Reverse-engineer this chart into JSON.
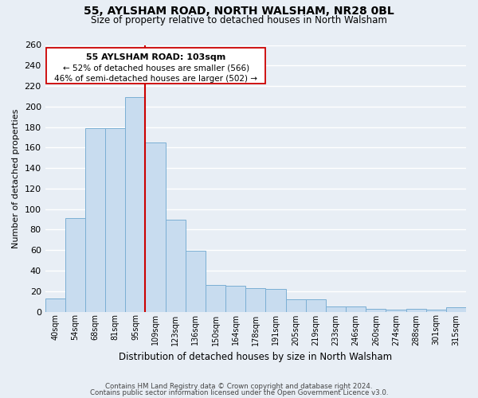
{
  "title": "55, AYLSHAM ROAD, NORTH WALSHAM, NR28 0BL",
  "subtitle": "Size of property relative to detached houses in North Walsham",
  "xlabel": "Distribution of detached houses by size in North Walsham",
  "ylabel": "Number of detached properties",
  "bar_color": "#c8dcef",
  "bar_edge_color": "#7bafd4",
  "categories": [
    "40sqm",
    "54sqm",
    "68sqm",
    "81sqm",
    "95sqm",
    "109sqm",
    "123sqm",
    "136sqm",
    "150sqm",
    "164sqm",
    "178sqm",
    "191sqm",
    "205sqm",
    "219sqm",
    "233sqm",
    "246sqm",
    "260sqm",
    "274sqm",
    "288sqm",
    "301sqm",
    "315sqm"
  ],
  "values": [
    13,
    91,
    179,
    179,
    209,
    165,
    90,
    59,
    26,
    25,
    23,
    22,
    12,
    12,
    5,
    5,
    3,
    2,
    3,
    2,
    4
  ],
  "ylim": [
    0,
    260
  ],
  "yticks": [
    0,
    20,
    40,
    60,
    80,
    100,
    120,
    140,
    160,
    180,
    200,
    220,
    240,
    260
  ],
  "property_line_label": "55 AYLSHAM ROAD: 103sqm",
  "annotation_line1": "← 52% of detached houses are smaller (566)",
  "annotation_line2": "46% of semi-detached houses are larger (502) →",
  "annotation_box_color": "#ffffff",
  "annotation_box_edge_color": "#cc0000",
  "property_line_color": "#cc0000",
  "footer1": "Contains HM Land Registry data © Crown copyright and database right 2024.",
  "footer2": "Contains public sector information licensed under the Open Government Licence v3.0.",
  "background_color": "#e8eef5",
  "grid_color": "#ffffff",
  "property_line_index": 4.5
}
